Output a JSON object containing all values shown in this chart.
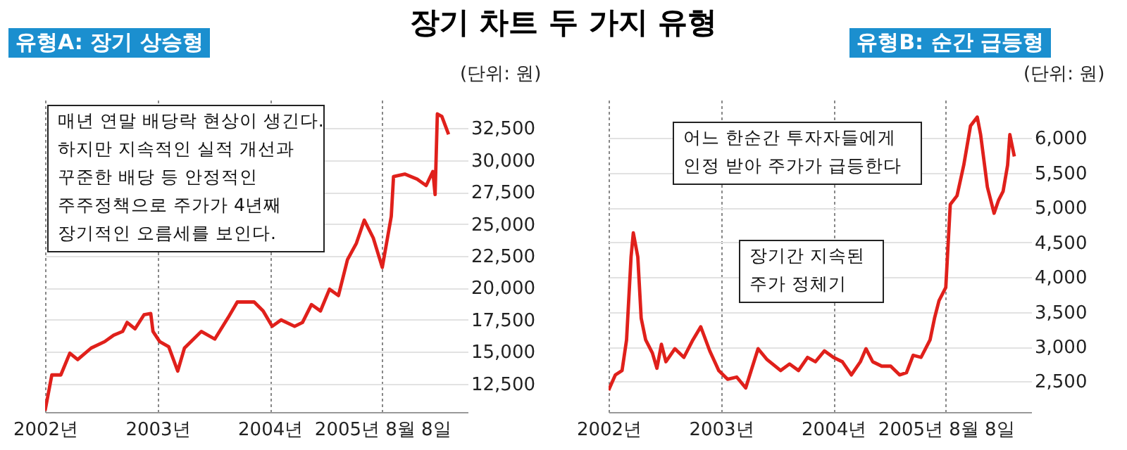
{
  "chart_data": [
    {
      "type": "line",
      "title": "장기 차트 두 가지 유형",
      "subtitle": "유형A: 장기 상승형",
      "ylabel": "(단위: 원)",
      "x": [
        2002.0,
        2002.06,
        2002.14,
        2002.22,
        2002.29,
        2002.41,
        2002.53,
        2002.61,
        2002.69,
        2002.73,
        2002.8,
        2002.88,
        2002.94,
        2002.96,
        2003.02,
        2003.1,
        2003.18,
        2003.24,
        2003.39,
        2003.51,
        2003.63,
        2003.71,
        2003.86,
        2003.94,
        2004.02,
        2004.1,
        2004.22,
        2004.29,
        2004.37,
        2004.45,
        2004.53,
        2004.61,
        2004.69,
        2004.77,
        2004.84,
        2004.92,
        2005.0,
        2005.08,
        2005.1,
        2005.2,
        2005.31,
        2005.39,
        2005.45,
        2005.47,
        2005.49,
        2005.53,
        2005.59
      ],
      "series": [
        {
          "color": "#e0201b",
          "values": [
            10400,
            13200,
            13200,
            14900,
            14400,
            15300,
            15800,
            16300,
            16600,
            17300,
            16800,
            17900,
            18000,
            16600,
            15800,
            15400,
            13500,
            15300,
            16600,
            16000,
            17700,
            18900,
            18900,
            18200,
            17000,
            17500,
            17000,
            17300,
            18700,
            18200,
            19900,
            19400,
            22200,
            23500,
            25300,
            23900,
            21600,
            25600,
            28700,
            28900,
            28500,
            28000,
            29100,
            27300,
            33600,
            33400,
            32000
          ]
        }
      ],
      "xlim": [
        2002,
        2005.76
      ],
      "xticks": [
        {
          "value": 2002,
          "label": "2002년"
        },
        {
          "value": 2003,
          "label": "2003년"
        },
        {
          "value": 2004,
          "label": "2004년"
        },
        {
          "value": 2005,
          "label": "2005년 8월 8일"
        }
      ],
      "ylim": [
        10300,
        34700
      ],
      "yticks": [
        {
          "value": 12500,
          "label": "12,500"
        },
        {
          "value": 15000,
          "label": "15,000"
        },
        {
          "value": 17500,
          "label": "17,500"
        },
        {
          "value": 20000,
          "label": "20,000"
        },
        {
          "value": 22500,
          "label": "22,500"
        },
        {
          "value": 25000,
          "label": "25,000"
        },
        {
          "value": 27500,
          "label": "27,500"
        },
        {
          "value": 30000,
          "label": "30,000"
        },
        {
          "value": 32500,
          "label": "32,500"
        }
      ],
      "grid": true,
      "annotations": [
        "매년 연말 배당락 현상이 생긴다.\n하지만 지속적인 실적 개선과\n꾸준한 배당 등 안정적인\n주주정책으로 주가가 4년째\n장기적인 오름세를 보인다."
      ]
    },
    {
      "type": "line",
      "subtitle": "유형B: 순간 급등형",
      "ylabel": "(단위: 원)",
      "x": [
        2002.0,
        2002.06,
        2002.12,
        2002.16,
        2002.2,
        2002.22,
        2002.26,
        2002.29,
        2002.33,
        2002.39,
        2002.43,
        2002.47,
        2002.51,
        2002.59,
        2002.67,
        2002.75,
        2002.82,
        2002.9,
        2002.98,
        2003.06,
        2003.14,
        2003.22,
        2003.33,
        2003.41,
        2003.53,
        2003.61,
        2003.69,
        2003.77,
        2003.84,
        2003.92,
        2004.0,
        2004.08,
        2004.16,
        2004.24,
        2004.29,
        2004.35,
        2004.43,
        2004.51,
        2004.59,
        2004.65,
        2004.71,
        2004.78,
        2004.86,
        2004.9,
        2004.94,
        2005.0,
        2005.04,
        2005.1,
        2005.16,
        2005.22,
        2005.28,
        2005.31,
        2005.37,
        2005.43,
        2005.47,
        2005.51,
        2005.55,
        2005.57,
        2005.61
      ],
      "series": [
        {
          "color": "#e0201b",
          "values": [
            2374,
            2594,
            2657,
            3097,
            4291,
            4637,
            4291,
            3411,
            3097,
            2908,
            2689,
            3034,
            2783,
            2971,
            2846,
            3097,
            3286,
            2940,
            2657,
            2531,
            2563,
            2406,
            2971,
            2814,
            2657,
            2751,
            2657,
            2846,
            2783,
            2940,
            2846,
            2783,
            2594,
            2783,
            2971,
            2783,
            2720,
            2720,
            2594,
            2626,
            2877,
            2846,
            3097,
            3411,
            3663,
            3851,
            5045,
            5171,
            5611,
            6176,
            6302,
            6050,
            5296,
            4919,
            5108,
            5234,
            5611,
            6050,
            5736
          ]
        }
      ],
      "xlim": [
        2002,
        2005.76
      ],
      "xticks": [
        {
          "value": 2002,
          "label": "2002년"
        },
        {
          "value": 2003,
          "label": "2003년"
        },
        {
          "value": 2004,
          "label": "2004년"
        },
        {
          "value": 2005,
          "label": "2005년 8월 8일"
        }
      ],
      "ylim": [
        2060,
        6550
      ],
      "yticks": [
        {
          "value": 2500,
          "label": "2,500"
        },
        {
          "value": 3000,
          "label": "3,000"
        },
        {
          "value": 3500,
          "label": "3,500"
        },
        {
          "value": 4000,
          "label": "4,000"
        },
        {
          "value": 4500,
          "label": "4,500"
        },
        {
          "value": 5000,
          "label": "5,000"
        },
        {
          "value": 5500,
          "label": "5,500"
        },
        {
          "value": 6000,
          "label": "6,000"
        }
      ],
      "grid": true,
      "annotations": [
        "어느 한순간 투자자들에게\n인정 받아 주가가 급등한다",
        "장기간 지속된\n주가 정체기"
      ]
    }
  ]
}
